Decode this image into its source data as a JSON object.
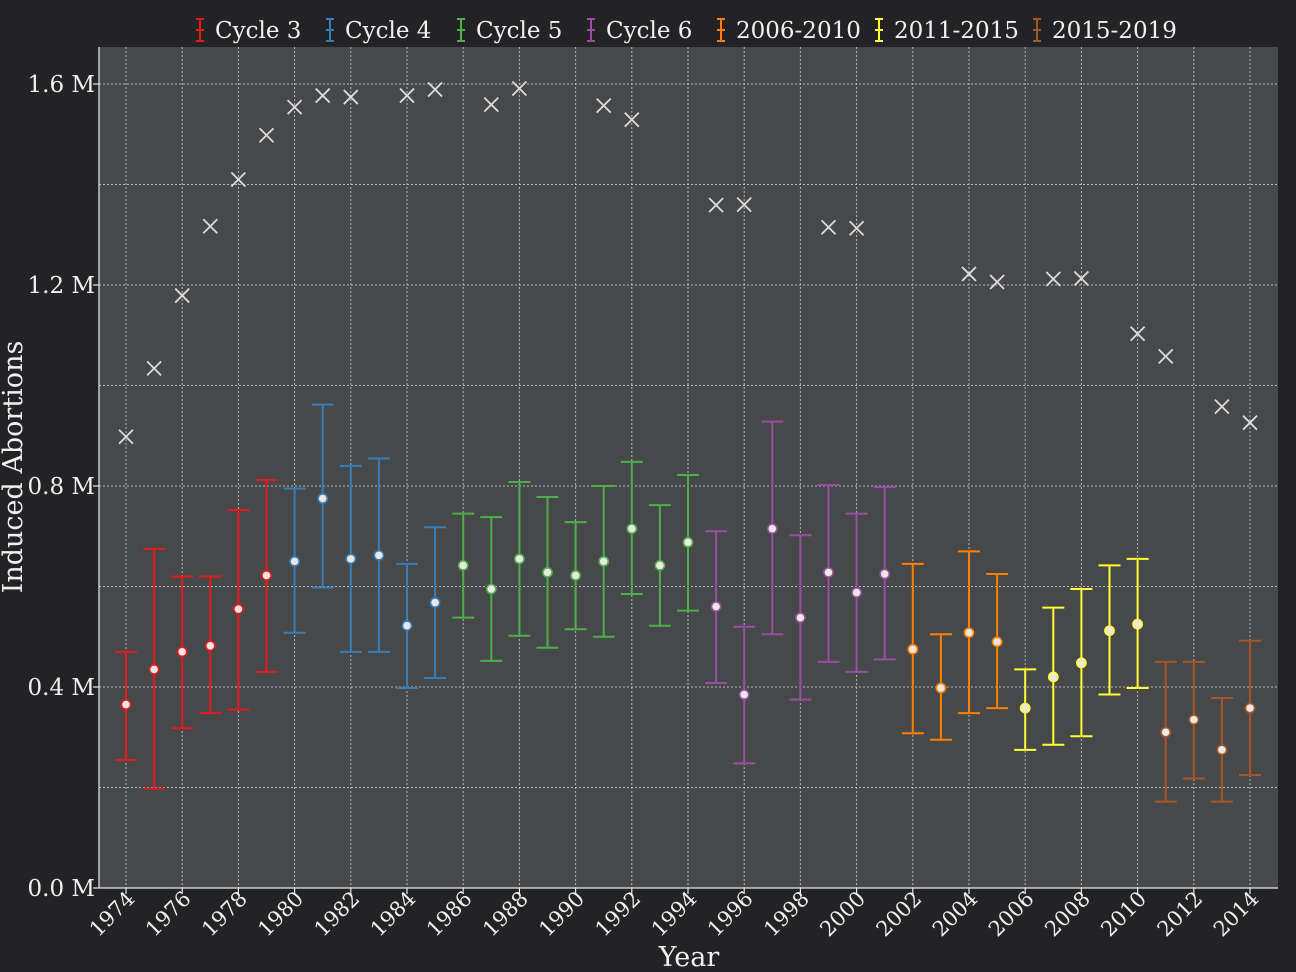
{
  "chart_data": {
    "type": "scatter",
    "xlabel": "Year",
    "ylabel": "Induced Abortions",
    "xlim": [
      1973,
      2015
    ],
    "ylim": [
      0,
      1.6
    ],
    "y_unit_suffix": " M",
    "y_tick_values": [
      0.0,
      0.4,
      0.8,
      1.2,
      1.6
    ],
    "y_tick_labels": [
      "0.0 M",
      "0.4 M",
      "0.8 M",
      "1.2 M",
      "1.6 M"
    ],
    "y_minor_grid": [
      0.2,
      0.6,
      1.0,
      1.4
    ],
    "x_tick_labels": [
      "1974",
      "1976",
      "1978",
      "1980",
      "1982",
      "1984",
      "1986",
      "1988",
      "1990",
      "1992",
      "1994",
      "1996",
      "1998",
      "2000",
      "2002",
      "2004",
      "2006",
      "2008",
      "2010",
      "2012",
      "2014"
    ],
    "grid": true,
    "legend_position": "top",
    "background_color": "#47484a",
    "series": [
      {
        "name": "Cycle 3",
        "color": "#e41a1c",
        "points": [
          {
            "x": 1974,
            "y": 0.365,
            "lo": 0.255,
            "hi": 0.47
          },
          {
            "x": 1975,
            "y": 0.435,
            "lo": 0.198,
            "hi": 0.675
          },
          {
            "x": 1976,
            "y": 0.47,
            "lo": 0.318,
            "hi": 0.62
          },
          {
            "x": 1977,
            "y": 0.482,
            "lo": 0.348,
            "hi": 0.62
          },
          {
            "x": 1978,
            "y": 0.555,
            "lo": 0.355,
            "hi": 0.752
          },
          {
            "x": 1979,
            "y": 0.622,
            "lo": 0.43,
            "hi": 0.812
          }
        ]
      },
      {
        "name": "Cycle 4",
        "color": "#377eb8",
        "points": [
          {
            "x": 1980,
            "y": 0.65,
            "lo": 0.508,
            "hi": 0.795
          },
          {
            "x": 1981,
            "y": 0.775,
            "lo": 0.598,
            "hi": 0.962
          },
          {
            "x": 1982,
            "y": 0.655,
            "lo": 0.47,
            "hi": 0.84
          },
          {
            "x": 1983,
            "y": 0.662,
            "lo": 0.47,
            "hi": 0.855
          },
          {
            "x": 1984,
            "y": 0.522,
            "lo": 0.398,
            "hi": 0.645
          },
          {
            "x": 1985,
            "y": 0.568,
            "lo": 0.418,
            "hi": 0.718
          }
        ]
      },
      {
        "name": "Cycle 5",
        "color": "#4daf4a",
        "points": [
          {
            "x": 1986,
            "y": 0.642,
            "lo": 0.538,
            "hi": 0.745
          },
          {
            "x": 1987,
            "y": 0.595,
            "lo": 0.452,
            "hi": 0.738
          },
          {
            "x": 1988,
            "y": 0.655,
            "lo": 0.502,
            "hi": 0.808
          },
          {
            "x": 1989,
            "y": 0.628,
            "lo": 0.478,
            "hi": 0.778
          },
          {
            "x": 1990,
            "y": 0.622,
            "lo": 0.515,
            "hi": 0.728
          },
          {
            "x": 1991,
            "y": 0.65,
            "lo": 0.5,
            "hi": 0.8
          },
          {
            "x": 1992,
            "y": 0.715,
            "lo": 0.585,
            "hi": 0.848
          },
          {
            "x": 1993,
            "y": 0.642,
            "lo": 0.522,
            "hi": 0.762
          },
          {
            "x": 1994,
            "y": 0.688,
            "lo": 0.552,
            "hi": 0.822
          }
        ]
      },
      {
        "name": "Cycle 6",
        "color": "#984ea3",
        "points": [
          {
            "x": 1995,
            "y": 0.56,
            "lo": 0.408,
            "hi": 0.71
          },
          {
            "x": 1996,
            "y": 0.385,
            "lo": 0.248,
            "hi": 0.52
          },
          {
            "x": 1997,
            "y": 0.715,
            "lo": 0.505,
            "hi": 0.928
          },
          {
            "x": 1998,
            "y": 0.538,
            "lo": 0.375,
            "hi": 0.702
          },
          {
            "x": 1999,
            "y": 0.628,
            "lo": 0.45,
            "hi": 0.802
          },
          {
            "x": 2000,
            "y": 0.588,
            "lo": 0.43,
            "hi": 0.745
          },
          {
            "x": 2001,
            "y": 0.625,
            "lo": 0.455,
            "hi": 0.798
          }
        ]
      },
      {
        "name": "2006-2010",
        "color": "#ff7f00",
        "points": [
          {
            "x": 2002,
            "y": 0.475,
            "lo": 0.308,
            "hi": 0.645
          },
          {
            "x": 2003,
            "y": 0.398,
            "lo": 0.295,
            "hi": 0.505
          },
          {
            "x": 2004,
            "y": 0.508,
            "lo": 0.348,
            "hi": 0.67
          },
          {
            "x": 2005,
            "y": 0.49,
            "lo": 0.358,
            "hi": 0.625
          }
        ]
      },
      {
        "name": "2011-2015",
        "color": "#ffff33",
        "points": [
          {
            "x": 2006,
            "y": 0.358,
            "lo": 0.275,
            "hi": 0.435
          },
          {
            "x": 2007,
            "y": 0.42,
            "lo": 0.285,
            "hi": 0.558
          },
          {
            "x": 2008,
            "y": 0.448,
            "lo": 0.302,
            "hi": 0.595
          },
          {
            "x": 2009,
            "y": 0.512,
            "lo": 0.385,
            "hi": 0.642
          },
          {
            "x": 2010,
            "y": 0.525,
            "lo": 0.398,
            "hi": 0.655
          }
        ]
      },
      {
        "name": "2015-2019",
        "color": "#a65628",
        "points": [
          {
            "x": 2011,
            "y": 0.31,
            "lo": 0.172,
            "hi": 0.45
          },
          {
            "x": 2012,
            "y": 0.335,
            "lo": 0.218,
            "hi": 0.45
          },
          {
            "x": 2013,
            "y": 0.275,
            "lo": 0.172,
            "hi": 0.378
          },
          {
            "x": 2014,
            "y": 0.358,
            "lo": 0.225,
            "hi": 0.492
          }
        ]
      }
    ],
    "reference": {
      "marker": "x",
      "color": "#dcdcdc",
      "points": [
        {
          "x": 1974,
          "y": 0.898
        },
        {
          "x": 1975,
          "y": 1.034
        },
        {
          "x": 1976,
          "y": 1.179
        },
        {
          "x": 1977,
          "y": 1.317
        },
        {
          "x": 1978,
          "y": 1.41
        },
        {
          "x": 1979,
          "y": 1.498
        },
        {
          "x": 1980,
          "y": 1.554
        },
        {
          "x": 1981,
          "y": 1.577
        },
        {
          "x": 1982,
          "y": 1.574
        },
        {
          "x": 1984,
          "y": 1.577
        },
        {
          "x": 1985,
          "y": 1.589
        },
        {
          "x": 1987,
          "y": 1.559
        },
        {
          "x": 1988,
          "y": 1.591
        },
        {
          "x": 1991,
          "y": 1.557
        },
        {
          "x": 1992,
          "y": 1.529
        },
        {
          "x": 1995,
          "y": 1.359
        },
        {
          "x": 1996,
          "y": 1.36
        },
        {
          "x": 1999,
          "y": 1.315
        },
        {
          "x": 2000,
          "y": 1.313
        },
        {
          "x": 2004,
          "y": 1.222
        },
        {
          "x": 2005,
          "y": 1.206
        },
        {
          "x": 2007,
          "y": 1.212
        },
        {
          "x": 2008,
          "y": 1.213
        },
        {
          "x": 2010,
          "y": 1.103
        },
        {
          "x": 2011,
          "y": 1.058
        },
        {
          "x": 2013,
          "y": 0.958
        },
        {
          "x": 2014,
          "y": 0.926
        }
      ]
    }
  }
}
